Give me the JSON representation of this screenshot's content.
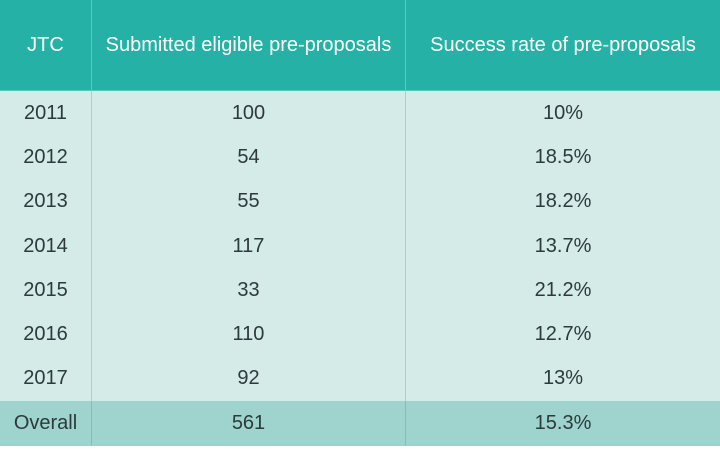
{
  "chart_data": {
    "type": "table",
    "columns": [
      "JTC",
      "Submitted eligible pre-proposals",
      "Success rate of pre-proposals"
    ],
    "rows": [
      [
        "2011",
        "100",
        "10%"
      ],
      [
        "2012",
        "54",
        "18.5%"
      ],
      [
        "2013",
        "55",
        "18.2%"
      ],
      [
        "2014",
        "117",
        "13.7%"
      ],
      [
        "2015",
        "33",
        "21.2%"
      ],
      [
        "2016",
        "110",
        "12.7%"
      ],
      [
        "2017",
        "92",
        "13%"
      ]
    ],
    "total": [
      "Overall",
      "561",
      "15.3%"
    ],
    "colors": {
      "header_bg": "#26b1a7",
      "row_bg": "#d5ebe8",
      "total_bg": "#9fd3cd"
    }
  }
}
